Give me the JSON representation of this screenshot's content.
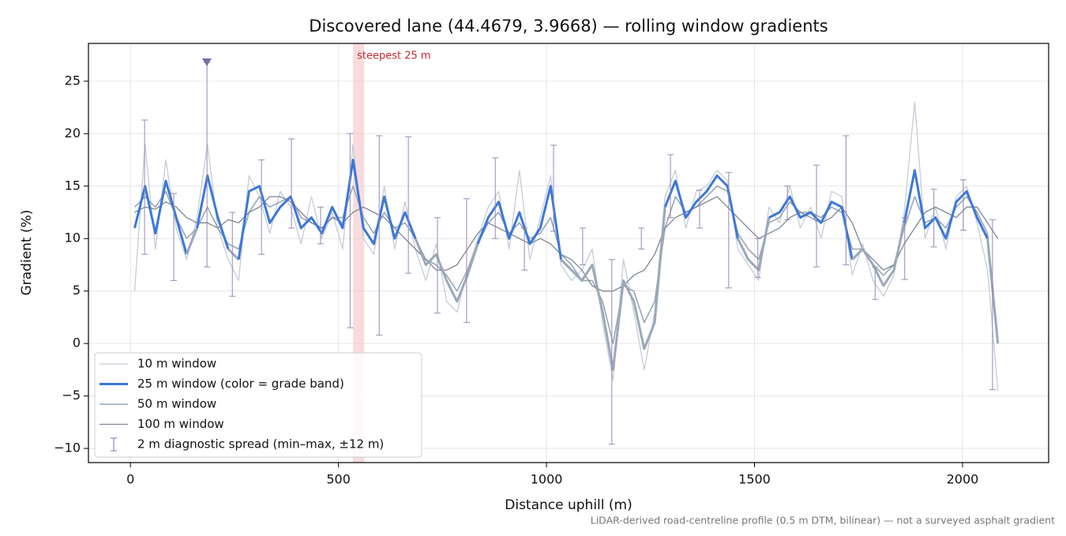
{
  "chart_data": {
    "type": "line",
    "title": "Discovered lane (44.4679, 3.9668) — rolling window gradients",
    "xlabel": "Distance uphill (m)",
    "ylabel": "Gradient (%)",
    "note": "LiDAR-derived road-centreline profile (0.5 m DTM, bilinear) — not a surveyed asphalt gradient",
    "xlim": [
      -101,
      2207
    ],
    "ylim": [
      -11.35,
      28.6
    ],
    "xticks": [
      0,
      500,
      1000,
      1500,
      2000
    ],
    "yticks": [
      {
        "value": -10,
        "label": "−10"
      },
      {
        "value": -5,
        "label": "−5"
      },
      0,
      5,
      10,
      15,
      20,
      25
    ],
    "grid": true,
    "legend": "lower left",
    "highlight": {
      "label": "steepest 25 m",
      "xlim": [
        535,
        562
      ],
      "color": "#f4c4c7",
      "label_color": "#c62832"
    },
    "band_threshold": 10,
    "band_color_below": "#9aa8ba",
    "x": [
      10,
      35,
      60,
      85,
      110,
      135,
      160,
      185,
      210,
      235,
      260,
      285,
      310,
      335,
      360,
      385,
      410,
      435,
      460,
      485,
      510,
      535,
      560,
      585,
      610,
      635,
      660,
      685,
      710,
      735,
      760,
      785,
      810,
      835,
      860,
      885,
      910,
      935,
      960,
      985,
      1010,
      1035,
      1060,
      1085,
      1110,
      1135,
      1160,
      1185,
      1210,
      1235,
      1260,
      1285,
      1310,
      1335,
      1360,
      1385,
      1410,
      1435,
      1460,
      1485,
      1510,
      1535,
      1560,
      1585,
      1610,
      1635,
      1660,
      1685,
      1710,
      1735,
      1760,
      1785,
      1810,
      1835,
      1860,
      1885,
      1910,
      1935,
      1960,
      1985,
      2010,
      2035,
      2060,
      2085
    ],
    "series": [
      {
        "name": "10 m window",
        "color": "#c5ccd6",
        "width": 1.3,
        "values": [
          5,
          19,
          9,
          17.5,
          11,
          8,
          12,
          19,
          11,
          8,
          6,
          16,
          14,
          10.5,
          14.5,
          13,
          9.5,
          14,
          10,
          12.5,
          9,
          19,
          10,
          8.5,
          15,
          9,
          13.5,
          9,
          6,
          9.5,
          4,
          3,
          7,
          10,
          13,
          14.5,
          9,
          16.5,
          8,
          12,
          16,
          7.5,
          6,
          7,
          9,
          2,
          -3.5,
          8,
          3,
          -2.5,
          3,
          14,
          16.5,
          11,
          14.5,
          15,
          16.5,
          15.5,
          9,
          7.5,
          6,
          13,
          11.5,
          15,
          11,
          13,
          10,
          14.5,
          14,
          6.5,
          9.5,
          6,
          4.5,
          6.5,
          12.5,
          23,
          10,
          13,
          9,
          14,
          15,
          11.5,
          7,
          -4.5
        ]
      },
      {
        "name": "25 m window (color = grade band)",
        "color": "#3b78d8",
        "width": 3,
        "banded": true,
        "values": [
          11,
          15,
          10.5,
          15.5,
          12,
          8.5,
          11,
          16,
          12,
          9,
          8,
          14.5,
          15,
          11.5,
          13,
          14,
          11,
          12,
          10.5,
          13,
          11,
          17.5,
          11,
          9.5,
          14,
          10,
          12.5,
          10,
          7.5,
          8.5,
          6,
          4,
          6.5,
          9.5,
          12,
          13.5,
          10,
          12.5,
          9.5,
          11,
          15,
          8,
          7,
          6,
          7.5,
          3,
          -2.5,
          6,
          4,
          -0.5,
          2,
          13,
          15.5,
          12,
          13.5,
          14.5,
          16,
          15,
          10,
          8,
          7,
          12,
          12.5,
          14,
          12,
          12.5,
          11.5,
          13.5,
          13,
          8,
          9,
          7.5,
          5.5,
          7,
          11.5,
          16.5,
          11,
          12,
          10,
          13.5,
          14.5,
          12,
          10,
          0
        ]
      },
      {
        "name": "50 m window",
        "color": "#9aa6b5",
        "width": 1.6,
        "values": [
          13,
          14,
          13,
          14.5,
          12,
          10,
          11,
          13,
          11,
          9.5,
          9,
          12.5,
          14,
          13,
          13.5,
          14,
          12,
          11.5,
          11,
          12,
          12,
          15,
          12,
          10.5,
          12.5,
          11,
          11.5,
          10,
          8,
          7.5,
          6.5,
          5,
          7,
          9.5,
          11.5,
          12.5,
          10.5,
          11.5,
          10,
          10.5,
          12,
          8.5,
          7.5,
          6,
          6,
          4,
          0,
          5.5,
          5,
          2,
          4,
          11,
          14,
          12.5,
          13,
          14,
          15,
          14.5,
          10.5,
          9,
          8,
          11.5,
          12,
          13.5,
          12.5,
          12.5,
          12,
          13,
          12.5,
          9,
          9,
          7.5,
          6.5,
          7.5,
          11,
          14,
          11.5,
          12,
          11,
          13,
          14,
          12.5,
          10.5,
          0.5
        ]
      },
      {
        "name": "100 m window",
        "color": "#7d8592",
        "width": 1.3,
        "values": [
          12.5,
          13,
          12.8,
          13.5,
          13,
          12,
          11.5,
          11.5,
          11,
          11.8,
          11.5,
          12.5,
          13,
          14,
          14,
          13.5,
          12.5,
          11.5,
          11,
          12,
          11.5,
          12.5,
          13,
          12.5,
          12,
          11,
          10,
          9,
          8,
          7,
          7,
          7.5,
          9,
          10.5,
          11.5,
          11,
          10.5,
          10,
          9.5,
          10,
          9.5,
          8.5,
          8,
          7,
          5.5,
          5,
          5,
          5.5,
          6.5,
          7,
          8.5,
          11,
          12,
          12.5,
          13,
          13.5,
          14,
          13,
          12,
          11,
          10,
          10.5,
          11,
          12,
          12.5,
          12,
          11.5,
          12,
          13,
          11.5,
          9,
          8,
          7,
          7.5,
          9.5,
          11,
          12.5,
          13,
          12.5,
          12,
          13,
          13,
          11.5,
          10
        ]
      }
    ],
    "errorbars": {
      "name": "2 m diagnostic spread (min–max, ±12 m)",
      "color": "#9284b3",
      "x": [
        34,
        104,
        184,
        245,
        315,
        387,
        457,
        528,
        598,
        668,
        738,
        808,
        877,
        947,
        1017,
        1087,
        1157,
        1228,
        1298,
        1368,
        1438,
        1508,
        1579,
        1649,
        1720,
        1790,
        1861,
        1931,
        2002,
        2072
      ],
      "lo": [
        8.5,
        6,
        7.3,
        4.5,
        8.5,
        11,
        9.5,
        1.5,
        0.8,
        6.7,
        2.9,
        2,
        10,
        7,
        10.7,
        7.5,
        -9.6,
        9,
        12,
        11,
        5.3,
        6.3,
        11.8,
        7.3,
        7.5,
        4.2,
        6.1,
        9.2,
        10.8,
        -4.4
      ],
      "hi": [
        21.3,
        14.3,
        26.8,
        12.5,
        17.5,
        19.5,
        13,
        20,
        19.8,
        19.7,
        12,
        13.8,
        17.7,
        11,
        18.9,
        11,
        8,
        11,
        18,
        14.6,
        16.3,
        10,
        15,
        17,
        19.8,
        7.3,
        12,
        14.7,
        15.6,
        11.8
      ]
    }
  }
}
